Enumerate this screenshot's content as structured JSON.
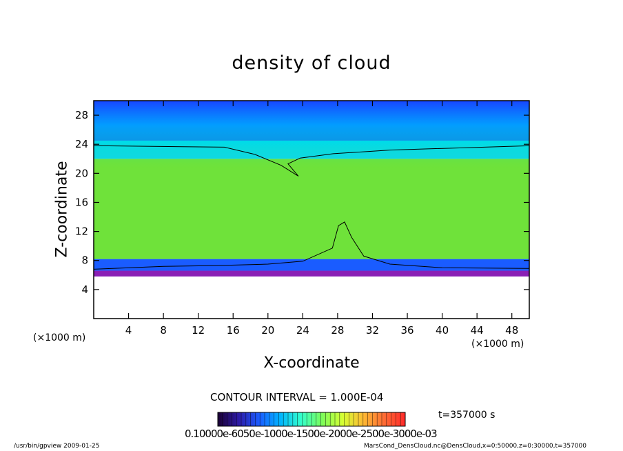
{
  "chart_data": {
    "type": "heatmap",
    "title": "density of cloud",
    "xlabel": "X-coordinate",
    "ylabel": "Z-coordinate",
    "x_unit_label": "(×1000 m)",
    "z_unit_label": "(×1000 m)",
    "xlim": [
      0,
      50
    ],
    "ylim": [
      0,
      30
    ],
    "x_ticks": [
      4,
      8,
      12,
      16,
      20,
      24,
      28,
      32,
      36,
      40,
      44,
      48
    ],
    "y_ticks": [
      4,
      8,
      12,
      16,
      20,
      24,
      28
    ],
    "contour_interval_label": "CONTOUR INTERVAL = 1.000E-04",
    "time_label": "t=357000 s",
    "colorbar_ticks_label": "0.10000e-6050e-1000e-1500e-2000e-2500e-3000e-03",
    "layers": [
      {
        "name": "white",
        "z_top": 5.8,
        "color": "#ffffff"
      },
      {
        "name": "purple",
        "z_top": 6.6,
        "color": "#8a1fb5"
      },
      {
        "name": "blue",
        "z_top": 8.2,
        "color": "#1a5cff"
      },
      {
        "name": "green",
        "z_top": 22.0,
        "color": "#6fe23a"
      },
      {
        "name": "cyan",
        "z_top": 24.5,
        "color": "#00d6ff"
      },
      {
        "name": "deep-blue",
        "z_top": 30.0,
        "color": "#1846ff"
      }
    ],
    "contour_lines": [
      {
        "name": "upper-contour",
        "points": [
          [
            0,
            23.8
          ],
          [
            15,
            23.6
          ],
          [
            18.5,
            22.6
          ],
          [
            21.5,
            21.1
          ],
          [
            23.5,
            19.6
          ],
          [
            22.3,
            21.3
          ],
          [
            23.7,
            22.1
          ],
          [
            27.5,
            22.7
          ],
          [
            34,
            23.2
          ],
          [
            50,
            23.8
          ]
        ]
      },
      {
        "name": "lower-contour",
        "points": [
          [
            0,
            6.8
          ],
          [
            8,
            7.2
          ],
          [
            14,
            7.3
          ],
          [
            20,
            7.5
          ],
          [
            24,
            7.9
          ],
          [
            27.4,
            9.7
          ],
          [
            28.1,
            12.8
          ],
          [
            28.8,
            13.3
          ],
          [
            29.6,
            11.2
          ],
          [
            31,
            8.6
          ],
          [
            34,
            7.5
          ],
          [
            40,
            7.0
          ],
          [
            50,
            6.9
          ]
        ]
      }
    ],
    "colorbar_colors": [
      "#1a0033",
      "#2d1aa6",
      "#1a5cff",
      "#00b4ff",
      "#33ffcc",
      "#7cfc5a",
      "#d6ff33",
      "#ffb833",
      "#ff6a33",
      "#ff2a2a"
    ],
    "footer_left": "/usr/bin/gpview  2009-01-25",
    "footer_right": "MarsCond_DensCloud.nc@DensCloud,x=0:50000,z=0:30000,t=357000"
  }
}
